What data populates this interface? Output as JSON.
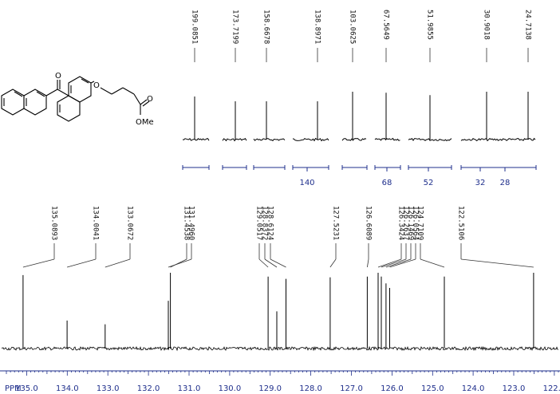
{
  "chart_data": [
    {
      "type": "nmr-spectrum",
      "panel": "full-range-segments",
      "segments": [
        {
          "axis_ticks": [],
          "peaks": [
            {
              "shift": 199.0851,
              "label": "199.0851",
              "height": 0.9
            }
          ]
        },
        {
          "axis_ticks": [],
          "peaks": [
            {
              "shift": 173.7199,
              "label": "173.7199",
              "height": 0.8
            }
          ]
        },
        {
          "axis_ticks": [],
          "peaks": [
            {
              "shift": 158.6678,
              "label": "158.6678",
              "height": 0.8
            }
          ]
        },
        {
          "axis_ticks": [
            "140"
          ],
          "peaks": [
            {
              "shift": 138.8971,
              "label": "138.8971",
              "height": 0.8
            }
          ]
        },
        {
          "axis_ticks": [],
          "peaks": [
            {
              "shift": 103.0625,
              "label": "103.0625",
              "height": 1.0
            }
          ]
        },
        {
          "axis_ticks": [
            "68"
          ],
          "peaks": [
            {
              "shift": 67.5649,
              "label": "67.5649",
              "height": 0.98
            }
          ]
        },
        {
          "axis_ticks": [
            "52"
          ],
          "peaks": [
            {
              "shift": 51.9855,
              "label": "51.9855",
              "height": 0.93
            }
          ]
        },
        {
          "axis_ticks": [
            "32",
            "28"
          ],
          "peaks": [
            {
              "shift": 30.9018,
              "label": "30.9018",
              "height": 1.0
            },
            {
              "shift": 24.7138,
              "label": "24.7138",
              "height": 1.0
            }
          ]
        }
      ]
    },
    {
      "type": "nmr-spectrum",
      "panel": "aromatic-expansion",
      "xlabel": "PPM",
      "xlim": [
        135.5,
        121.9
      ],
      "x_ticks": [
        135.0,
        134.0,
        133.0,
        132.0,
        131.0,
        130.0,
        129.0,
        128.0,
        127.0,
        126.0,
        125.0,
        124.0,
        123.0,
        122.0
      ],
      "x_tick_labels": [
        "135.0",
        "134.0",
        "133.0",
        "132.0",
        "131.0",
        "130.0",
        "129.0",
        "128.0",
        "127.0",
        "126.0",
        "125.0",
        "124.0",
        "123.0",
        "122.0"
      ],
      "peaks": [
        {
          "shift": 135.0893,
          "label": "135.0893",
          "height": 0.97
        },
        {
          "shift": 134.0041,
          "label": "134.0041",
          "height": 0.37
        },
        {
          "shift": 133.0672,
          "label": "133.0672",
          "height": 0.32
        },
        {
          "shift": 131.5,
          "label": "131.4538",
          "height": 1.0
        },
        {
          "shift": 131.5,
          "label": "131.4960",
          "height": 0.63
        },
        {
          "shift": 129.0517,
          "label": "129.0517",
          "height": 0.95
        },
        {
          "shift": 128.8372,
          "label": "128.8372",
          "height": 0.49
        },
        {
          "shift": 128.6124,
          "label": "128.6124",
          "height": 0.92
        },
        {
          "shift": 127.5231,
          "label": "127.5231",
          "height": 0.94
        },
        {
          "shift": 126.6089,
          "label": "126.6089",
          "height": 0.95
        },
        {
          "shift": 126.3424,
          "label": "126.3424",
          "height": 1.0
        },
        {
          "shift": 126.2637,
          "label": "126.2637",
          "height": 0.95
        },
        {
          "shift": 126.1469,
          "label": "126.1469",
          "height": 0.86
        },
        {
          "shift": 126.0564,
          "label": "126.0564",
          "height": 0.8
        },
        {
          "shift": 124.7109,
          "label": "124.7109",
          "height": 0.95
        },
        {
          "shift": 122.5106,
          "label": "122.5106",
          "height": 1.0
        }
      ]
    }
  ],
  "structure": {
    "atom_labels": [
      "O",
      "O",
      "O",
      "OMe"
    ],
    "colors": {
      "structure": "#000000"
    }
  },
  "colors": {
    "spectrum": "#000000",
    "axis": "#1f2f8c",
    "labels": "#111111"
  }
}
